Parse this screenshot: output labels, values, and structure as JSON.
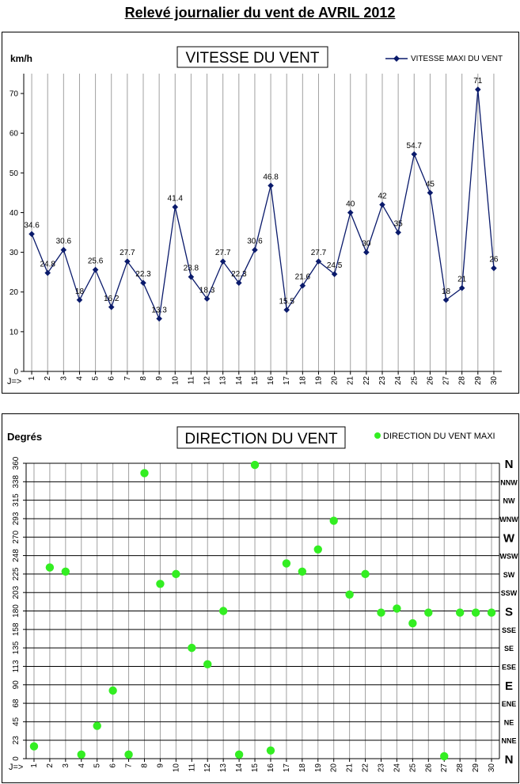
{
  "page_title": "Relevé journalier du vent de AVRIL 2012",
  "colors": {
    "speed_series": "#0a1a6b",
    "direction_series": "#33ee22",
    "grid": "#a0a0a0"
  },
  "chart_data": [
    {
      "type": "line",
      "title": "VITESSE DU VENT",
      "ylabel": "km/h",
      "xlabel_prefix": "J=>",
      "ylim": [
        0,
        75
      ],
      "yticks": [
        "0",
        "10",
        "20",
        "30",
        "40",
        "50",
        "60",
        "70"
      ],
      "categories": [
        "1",
        "2",
        "3",
        "4",
        "5",
        "6",
        "7",
        "8",
        "9",
        "10",
        "11",
        "12",
        "13",
        "14",
        "15",
        "16",
        "17",
        "18",
        "19",
        "20",
        "21",
        "22",
        "23",
        "24",
        "25",
        "26",
        "27",
        "28",
        "29",
        "30"
      ],
      "legend_position": "top-right",
      "series": [
        {
          "name": "VITESSE MAXI DU VENT",
          "values": [
            34.6,
            24.8,
            30.6,
            18,
            25.6,
            16.2,
            27.7,
            22.3,
            13.3,
            41.4,
            23.8,
            18.3,
            27.7,
            22.3,
            30.6,
            46.8,
            15.5,
            21.6,
            27.7,
            24.5,
            40,
            30,
            42,
            35,
            54.7,
            45,
            18,
            21,
            71,
            26
          ],
          "labels": [
            "34.6",
            "24.8",
            "30.6",
            "18",
            "25.6",
            "16.2",
            "27.7",
            "22.3",
            "13.3",
            "41.4",
            "23.8",
            "18.3",
            "27.7",
            "22.3",
            "30.6",
            "46.8",
            "15.5",
            "21.6",
            "27.7",
            "24.5",
            "40",
            "30",
            "42",
            "35",
            "54.7",
            "45",
            "18",
            "21",
            "71",
            "26"
          ]
        }
      ]
    },
    {
      "type": "scatter",
      "title": "DIRECTION DU VENT",
      "ylabel": "Degrés",
      "xlabel_prefix": "J=>",
      "ylim": [
        0,
        360
      ],
      "yticks": [
        "0",
        "23",
        "45",
        "68",
        "90",
        "113",
        "135",
        "158",
        "180",
        "203",
        "225",
        "248",
        "270",
        "293",
        "315",
        "338",
        "360"
      ],
      "compass_labels": [
        "N",
        "NNE",
        "NE",
        "ENE",
        "E",
        "ESE",
        "SE",
        "SSE",
        "S",
        "SSW",
        "SW",
        "WSW",
        "W",
        "WNW",
        "NW",
        "NNW",
        "N"
      ],
      "categories": [
        "1",
        "2",
        "3",
        "4",
        "5",
        "6",
        "7",
        "8",
        "9",
        "10",
        "11",
        "12",
        "13",
        "14",
        "15",
        "16",
        "17",
        "18",
        "19",
        "20",
        "21",
        "22",
        "23",
        "24",
        "25",
        "26",
        "27",
        "28",
        "29",
        "30"
      ],
      "legend_position": "top-right",
      "series": [
        {
          "name": "DIRECTION DU VENT MAXI",
          "values": [
            15,
            233,
            228,
            5,
            40,
            83,
            5,
            348,
            213,
            225,
            135,
            115,
            180,
            5,
            358,
            10,
            238,
            228,
            255,
            290,
            200,
            225,
            178,
            183,
            165,
            178,
            3,
            178,
            178,
            178
          ]
        }
      ]
    }
  ]
}
